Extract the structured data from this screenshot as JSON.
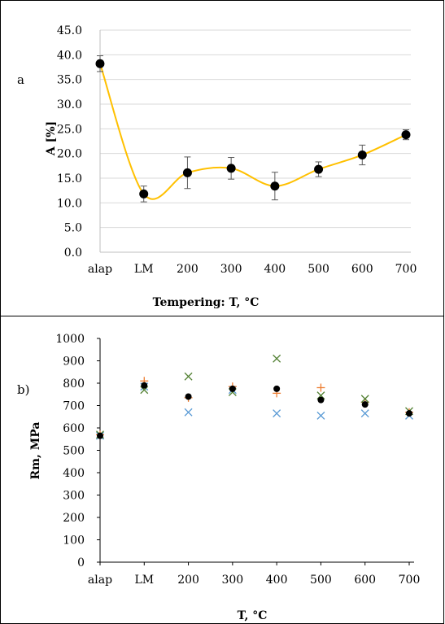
{
  "colors": {
    "line": "#FFC000",
    "marker": "#000000",
    "errorbar": "#595959",
    "grid": "#D9D9D9",
    "border": "#000000",
    "series_blue": "#5B9BD5",
    "series_orange": "#ED7D31",
    "series_green": "#548235"
  },
  "chart_data": [
    {
      "type": "line",
      "panel_letter": "a",
      "categories": [
        "alap",
        "LM",
        "200",
        "300",
        "400",
        "500",
        "600",
        "700"
      ],
      "series": [
        {
          "values": [
            38.2,
            11.8,
            16.1,
            17.0,
            13.4,
            16.8,
            19.7,
            23.8
          ],
          "error": [
            1.6,
            1.6,
            3.2,
            2.2,
            2.8,
            1.5,
            2.0,
            1.0
          ],
          "smoothed_line": true,
          "marker": "circle"
        }
      ],
      "xlabel": "Tempering: T, °C",
      "ylabel": "A [%]",
      "ylim": [
        0,
        45
      ],
      "ytick_step": 5,
      "ytick_labels": [
        "0.0",
        "5.0",
        "10.0",
        "15.0",
        "20.0",
        "25.0",
        "30.0",
        "35.0",
        "40.0",
        "45.0"
      ],
      "grid": true,
      "legend": "none"
    },
    {
      "type": "scatter",
      "panel_letter": "b)",
      "categories": [
        "alap",
        "LM",
        "200",
        "300",
        "400",
        "500",
        "600",
        "700"
      ],
      "series": [
        {
          "marker": "x",
          "color_key": "series_blue",
          "values": [
            565,
            785,
            670,
            770,
            665,
            655,
            665,
            655
          ]
        },
        {
          "marker": "plus",
          "color_key": "series_orange",
          "values": [
            570,
            810,
            735,
            785,
            755,
            780,
            715,
            670
          ]
        },
        {
          "marker": "x",
          "color_key": "series_green",
          "values": [
            570,
            770,
            830,
            760,
            910,
            745,
            730,
            675
          ]
        },
        {
          "marker": "dot",
          "color_key": "marker",
          "values": [
            565,
            790,
            740,
            775,
            775,
            725,
            705,
            665
          ]
        }
      ],
      "xlabel": "T, °C",
      "ylabel": "Rm, MPa",
      "ylim": [
        0,
        1000
      ],
      "ytick_step": 100,
      "ytick_labels": [
        "0",
        "100",
        "200",
        "300",
        "400",
        "500",
        "600",
        "700",
        "800",
        "900",
        "1000"
      ],
      "grid": false,
      "legend": "none"
    }
  ]
}
